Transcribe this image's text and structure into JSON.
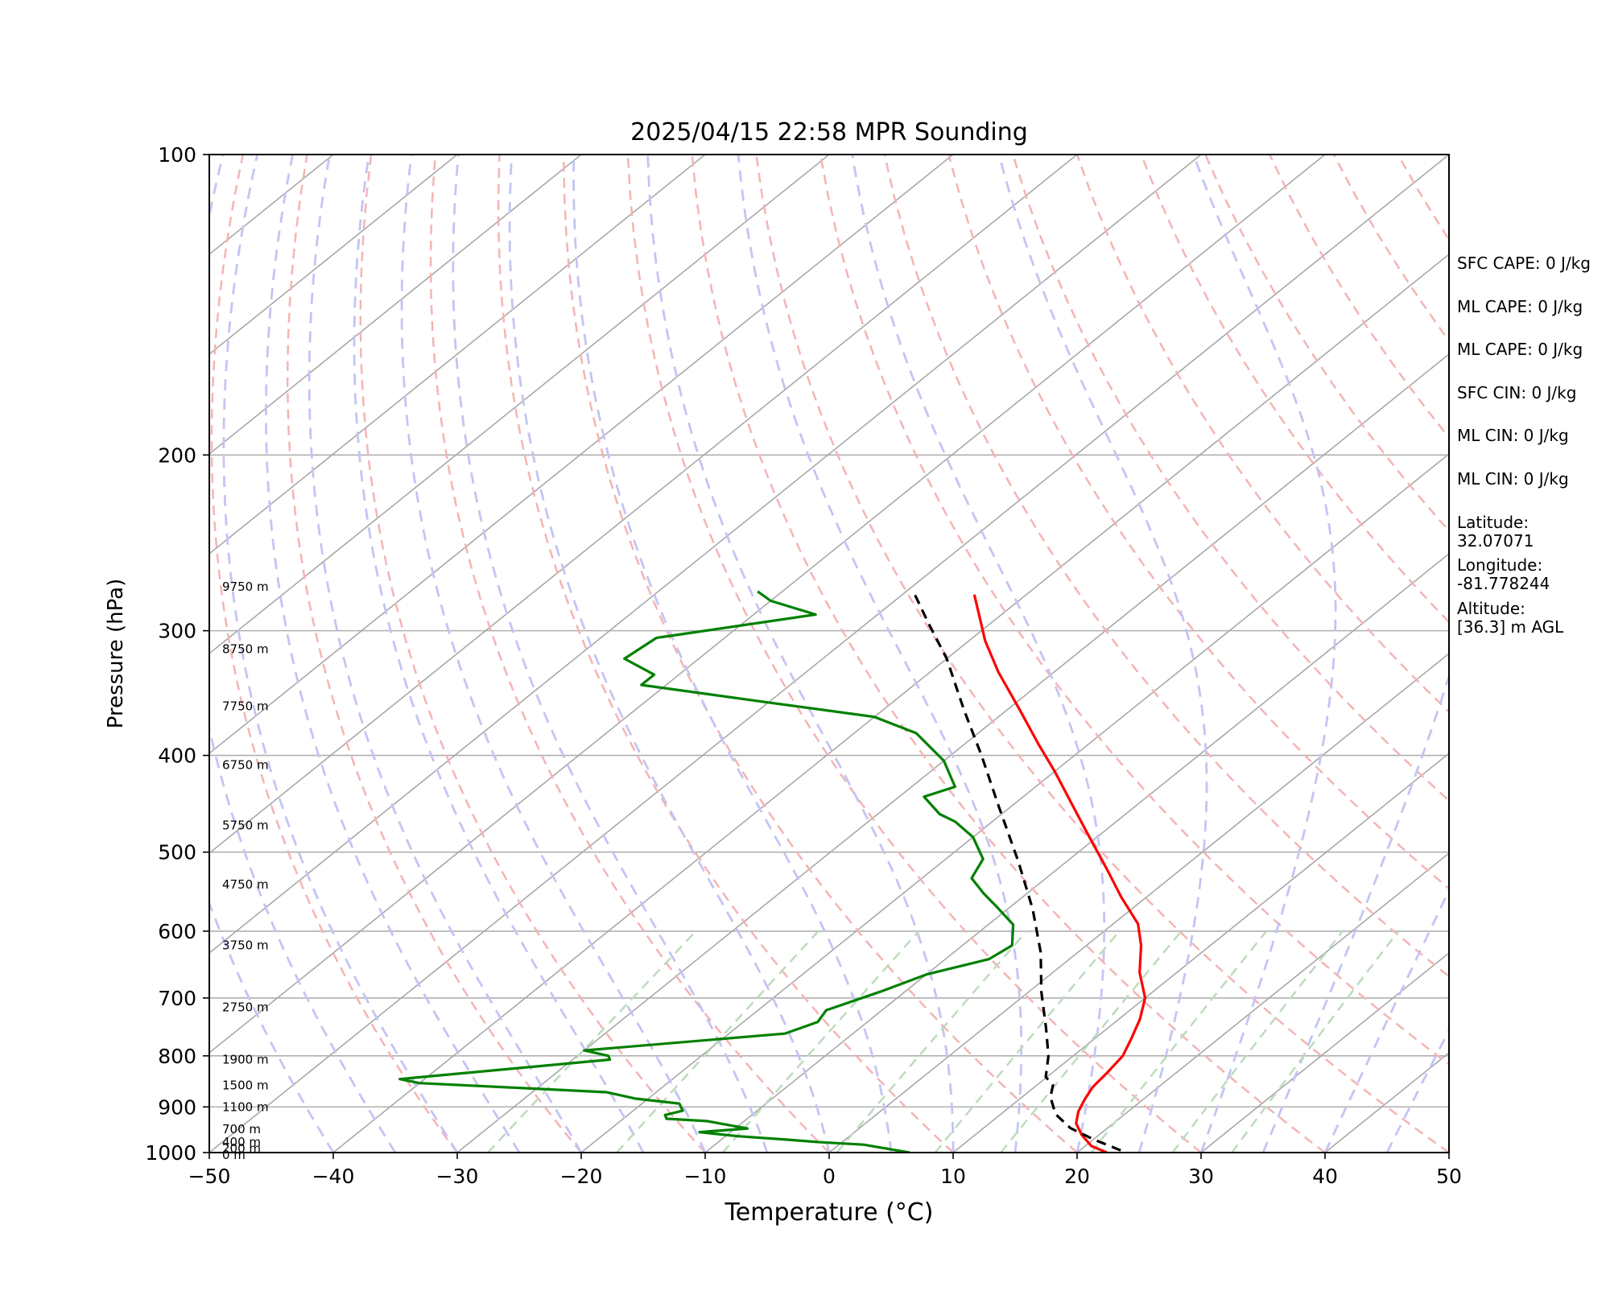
{
  "chart_data": {
    "type": "line",
    "title": "2025/04/15 22:58 MPR Sounding",
    "xlabel": "Temperature (°C)",
    "ylabel": "Pressure (hPa)",
    "xlim": [
      -50,
      50
    ],
    "ylim": [
      1000,
      100
    ],
    "yscale": "log",
    "skew": true,
    "x_ticks": [
      -50,
      -40,
      -30,
      -20,
      -10,
      0,
      10,
      20,
      30,
      40,
      50
    ],
    "x_tick_labels": [
      "−50",
      "−40",
      "−30",
      "−20",
      "−10",
      "0",
      "10",
      "20",
      "30",
      "40",
      "50"
    ],
    "y_ticks": [
      1000,
      900,
      800,
      700,
      600,
      500,
      400,
      300,
      200,
      100
    ],
    "y_tick_labels": [
      "1000",
      "900",
      "800",
      "700",
      "600",
      "500",
      "400",
      "300",
      "200",
      "100"
    ],
    "grid": true,
    "height_labels": [
      {
        "text": "9750 m",
        "pressure": 271
      },
      {
        "text": "8750 m",
        "pressure": 313
      },
      {
        "text": "7750 m",
        "pressure": 357
      },
      {
        "text": "6750 m",
        "pressure": 409
      },
      {
        "text": "5750 m",
        "pressure": 470
      },
      {
        "text": "4750 m",
        "pressure": 539
      },
      {
        "text": "3750 m",
        "pressure": 620
      },
      {
        "text": "2750 m",
        "pressure": 715
      },
      {
        "text": "1900 m",
        "pressure": 807
      },
      {
        "text": "1500 m",
        "pressure": 856
      },
      {
        "text": "1100 m",
        "pressure": 900
      },
      {
        "text": "700 m",
        "pressure": 948
      },
      {
        "text": "400 m",
        "pressure": 976
      },
      {
        "text": "200 m",
        "pressure": 991
      },
      {
        "text": "0 m",
        "pressure": 1006
      }
    ],
    "series": [
      {
        "color": "#ff0000",
        "dash": "solid",
        "points": [
          [
            22.4,
            1000
          ],
          [
            20.5,
            985
          ],
          [
            18.6,
            960
          ],
          [
            17.0,
            935
          ],
          [
            16.0,
            910
          ],
          [
            15.3,
            885
          ],
          [
            14.7,
            860
          ],
          [
            14.4,
            830
          ],
          [
            14.0,
            800
          ],
          [
            13.0,
            770
          ],
          [
            11.7,
            735
          ],
          [
            10.0,
            700
          ],
          [
            7.0,
            660
          ],
          [
            4.4,
            620
          ],
          [
            2.0,
            590
          ],
          [
            -2.0,
            555
          ],
          [
            -6.0,
            520
          ],
          [
            -11.0,
            480
          ],
          [
            -15.0,
            450
          ],
          [
            -20.0,
            415
          ],
          [
            -24.0,
            390
          ],
          [
            -29.0,
            360
          ],
          [
            -34.5,
            330
          ],
          [
            -38.7,
            307
          ],
          [
            -42.0,
            288
          ],
          [
            -44.2,
            276
          ]
        ]
      },
      {
        "color": "#000000",
        "dash": "dashed",
        "points": [
          [
            23.3,
            995
          ],
          [
            20.0,
            970
          ],
          [
            17.0,
            945
          ],
          [
            14.4,
            915
          ],
          [
            12.3,
            880
          ],
          [
            11.3,
            856
          ],
          [
            9.9,
            840
          ],
          [
            8.0,
            800
          ],
          [
            5.0,
            750
          ],
          [
            1.0,
            690
          ],
          [
            -3.0,
            630
          ],
          [
            -8.0,
            570
          ],
          [
            -14.0,
            510
          ],
          [
            -21.0,
            450
          ],
          [
            -27.5,
            400
          ],
          [
            -33.5,
            360
          ],
          [
            -40.0,
            320
          ],
          [
            -45.0,
            295
          ],
          [
            -49.0,
            276
          ]
        ]
      },
      {
        "color": "#008000",
        "dash": "solid",
        "points": [
          [
            6.5,
            1000
          ],
          [
            4.0,
            990
          ],
          [
            2.0,
            982
          ],
          [
            -2.0,
            976
          ],
          [
            -5.0,
            970
          ],
          [
            -9.0,
            963
          ],
          [
            -12.5,
            954
          ],
          [
            -9.0,
            946
          ],
          [
            -13.0,
            930
          ],
          [
            -16.5,
            925
          ],
          [
            -17.0,
            917
          ],
          [
            -16.0,
            908
          ],
          [
            -17.0,
            893
          ],
          [
            -21.0,
            883
          ],
          [
            -24.0,
            870
          ],
          [
            -31.0,
            862
          ],
          [
            -40.0,
            852
          ],
          [
            -42.0,
            844
          ],
          [
            -27.0,
            807
          ],
          [
            -27.5,
            800
          ],
          [
            -30.0,
            790
          ],
          [
            -15.5,
            760
          ],
          [
            -14.0,
            740
          ],
          [
            -14.5,
            720
          ],
          [
            -12.0,
            690
          ],
          [
            -10.0,
            663
          ],
          [
            -6.5,
            640
          ],
          [
            -6.0,
            620
          ],
          [
            -8.0,
            591
          ],
          [
            -11.0,
            568
          ],
          [
            -13.5,
            550
          ],
          [
            -16.0,
            531
          ],
          [
            -17.0,
            508
          ],
          [
            -20.0,
            483
          ],
          [
            -23.0,
            466
          ],
          [
            -25.0,
            458
          ],
          [
            -28.0,
            440
          ],
          [
            -26.5,
            430
          ],
          [
            -30.0,
            405
          ],
          [
            -35.0,
            380
          ],
          [
            -40.0,
            366
          ],
          [
            -50.0,
            354
          ],
          [
            -62.0,
            340
          ],
          [
            -62.0,
            332
          ],
          [
            -66.0,
            320
          ],
          [
            -65.5,
            305
          ],
          [
            -55.0,
            289
          ],
          [
            -60.0,
            280
          ],
          [
            -62.0,
            274
          ]
        ]
      }
    ],
    "info_panel": [
      "SFC CAPE: 0 J/kg",
      "ML CAPE: 0 J/kg",
      "ML CAPE: 0 J/kg",
      "SFC CIN: 0 J/kg",
      "ML CIN: 0 J/kg",
      "ML CIN: 0 J/kg",
      "Latitude:\n32.07071",
      "Longitude:\n-81.778244",
      "Altitude:\n[36.3] m AGL"
    ]
  }
}
